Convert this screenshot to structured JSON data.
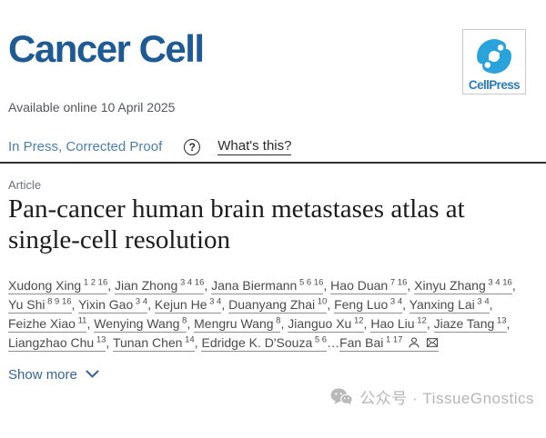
{
  "journal": {
    "name": "Cancer Cell",
    "publisher": {
      "logo_text": "CellPress"
    }
  },
  "meta": {
    "available_online": "Available online 10 April 2025",
    "in_press_status": "In Press, Corrected Proof",
    "whats_this_label": "What's this?"
  },
  "icons": {
    "help_glyph": "?"
  },
  "article": {
    "type_label": "Article",
    "title": "Pan-cancer human brain metastases atlas at single-cell resolution"
  },
  "authors": {
    "list": [
      {
        "name": "Xudong Xing",
        "sup": "1 2 16"
      },
      {
        "name": "Jian Zhong",
        "sup": "3 4 16"
      },
      {
        "name": "Jana Biermann",
        "sup": "5 6 16"
      },
      {
        "name": "Hao Duan",
        "sup": "7 16"
      },
      {
        "name": "Xinyu Zhang",
        "sup": "3 4 16"
      },
      {
        "name": "Yu Shi",
        "sup": "8 9 16"
      },
      {
        "name": "Yixin Gao",
        "sup": "3 4"
      },
      {
        "name": "Kejun He",
        "sup": "3 4"
      },
      {
        "name": "Duanyang Zhai",
        "sup": "10"
      },
      {
        "name": "Feng Luo",
        "sup": "3 4"
      },
      {
        "name": "Yanxing Lai",
        "sup": "3 4"
      },
      {
        "name": "Feizhe Xiao",
        "sup": "11"
      },
      {
        "name": "Wenying Wang",
        "sup": "8"
      },
      {
        "name": "Mengru Wang",
        "sup": "8"
      },
      {
        "name": "Jianguo Xu",
        "sup": "12"
      },
      {
        "name": "Hao Liu",
        "sup": "12"
      },
      {
        "name": "Jiaze Tang",
        "sup": "13"
      },
      {
        "name": "Liangzhao Chu",
        "sup": "13"
      },
      {
        "name": "Tunan Chen",
        "sup": "14"
      },
      {
        "name": "Edridge K. D'Souza",
        "sup": "5 6"
      },
      {
        "name": "Fan Bai",
        "sup": "1 17",
        "prefix": "…",
        "corresponding": true
      }
    ]
  },
  "actions": {
    "show_more_label": "Show more"
  },
  "watermark": {
    "text": "公众号 · TissueGnostics"
  },
  "colors": {
    "journal_blue": "#1e5b94",
    "cellpress_blue": "#2aa3dc",
    "cellpress_text_blue": "#2e7ab8",
    "link_blue": "#4b7fb3",
    "show_more_blue": "#36639b",
    "body_text_gray": "#4b4b4b",
    "watermark_gray": "#b5b5b5"
  }
}
